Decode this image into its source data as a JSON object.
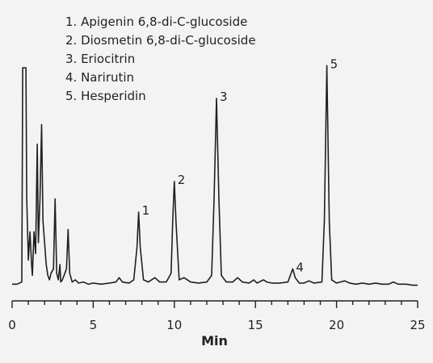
{
  "chart_data": {
    "type": "line",
    "title": "",
    "xlabel": "Min",
    "ylabel": "",
    "xlim": [
      0,
      25
    ],
    "ylim": [
      0,
      100
    ],
    "x_ticks": [
      0,
      5,
      10,
      15,
      20,
      25
    ],
    "x_tick_labels": [
      "0",
      "5",
      "10",
      "15",
      "20",
      "25"
    ],
    "grid": false,
    "legend": [
      "1. Apigenin 6,8-di-C-glucoside",
      "2. Diosmetin 6,8-di-C-glucoside",
      "3. Eriocitrin",
      "4. Narirutin",
      "5. Hesperidin"
    ],
    "legend_position": "top",
    "line_color": "#231f20",
    "peak_labels": [
      {
        "text": "1",
        "x": 7.8,
        "y": 34
      },
      {
        "text": "2",
        "x": 10.0,
        "y": 48
      },
      {
        "text": "3",
        "x": 12.6,
        "y": 86
      },
      {
        "text": "4",
        "x": 17.3,
        "y": 8
      },
      {
        "text": "5",
        "x": 19.4,
        "y": 101
      }
    ],
    "series": [
      {
        "values": [
          [
            0.0,
            1
          ],
          [
            0.3,
            1
          ],
          [
            0.6,
            2
          ],
          [
            0.65,
            100
          ],
          [
            0.85,
            100
          ],
          [
            0.9,
            40
          ],
          [
            1.0,
            12
          ],
          [
            1.1,
            25
          ],
          [
            1.2,
            10
          ],
          [
            1.25,
            5
          ],
          [
            1.35,
            25
          ],
          [
            1.45,
            15
          ],
          [
            1.55,
            65
          ],
          [
            1.62,
            20
          ],
          [
            1.72,
            40
          ],
          [
            1.82,
            74
          ],
          [
            1.9,
            30
          ],
          [
            2.0,
            20
          ],
          [
            2.1,
            10
          ],
          [
            2.2,
            5
          ],
          [
            2.3,
            3
          ],
          [
            2.4,
            6
          ],
          [
            2.55,
            8
          ],
          [
            2.65,
            40
          ],
          [
            2.75,
            6
          ],
          [
            2.85,
            3
          ],
          [
            2.95,
            10
          ],
          [
            3.0,
            2
          ],
          [
            3.1,
            3
          ],
          [
            3.2,
            5
          ],
          [
            3.35,
            8
          ],
          [
            3.45,
            26
          ],
          [
            3.55,
            6
          ],
          [
            3.7,
            2
          ],
          [
            3.9,
            3
          ],
          [
            4.1,
            1.5
          ],
          [
            4.4,
            2
          ],
          [
            4.7,
            1
          ],
          [
            5.0,
            1.5
          ],
          [
            5.5,
            1
          ],
          [
            6.0,
            1.5
          ],
          [
            6.4,
            2
          ],
          [
            6.6,
            4
          ],
          [
            6.8,
            2
          ],
          [
            7.2,
            1.5
          ],
          [
            7.5,
            3
          ],
          [
            7.7,
            18
          ],
          [
            7.8,
            34
          ],
          [
            7.9,
            18
          ],
          [
            8.1,
            3
          ],
          [
            8.4,
            2
          ],
          [
            8.8,
            4
          ],
          [
            9.1,
            2
          ],
          [
            9.5,
            2
          ],
          [
            9.8,
            6
          ],
          [
            9.9,
            30
          ],
          [
            10.0,
            48
          ],
          [
            10.1,
            30
          ],
          [
            10.3,
            3
          ],
          [
            10.6,
            4
          ],
          [
            11.0,
            2
          ],
          [
            11.5,
            1.5
          ],
          [
            12.0,
            2
          ],
          [
            12.3,
            5
          ],
          [
            12.45,
            40
          ],
          [
            12.6,
            86
          ],
          [
            12.75,
            40
          ],
          [
            12.9,
            5
          ],
          [
            13.2,
            2
          ],
          [
            13.6,
            2
          ],
          [
            13.9,
            4
          ],
          [
            14.2,
            2
          ],
          [
            14.6,
            1.5
          ],
          [
            14.9,
            3
          ],
          [
            15.1,
            1.5
          ],
          [
            15.5,
            3
          ],
          [
            15.7,
            2
          ],
          [
            16.0,
            1.5
          ],
          [
            16.5,
            1.5
          ],
          [
            17.0,
            2
          ],
          [
            17.15,
            5
          ],
          [
            17.3,
            8
          ],
          [
            17.45,
            4
          ],
          [
            17.7,
            1.5
          ],
          [
            18.0,
            1.5
          ],
          [
            18.3,
            2.5
          ],
          [
            18.6,
            1.5
          ],
          [
            19.1,
            2
          ],
          [
            19.25,
            30
          ],
          [
            19.4,
            101
          ],
          [
            19.55,
            30
          ],
          [
            19.7,
            3
          ],
          [
            20.0,
            1.5
          ],
          [
            20.5,
            2.5
          ],
          [
            20.8,
            1.5
          ],
          [
            21.2,
            1
          ],
          [
            21.6,
            1.5
          ],
          [
            22.0,
            1
          ],
          [
            22.4,
            1.5
          ],
          [
            22.8,
            1
          ],
          [
            23.2,
            1
          ],
          [
            23.5,
            2
          ],
          [
            23.8,
            1
          ],
          [
            24.3,
            1
          ],
          [
            24.7,
            0.5
          ],
          [
            25.0,
            0.5
          ]
        ]
      }
    ]
  }
}
